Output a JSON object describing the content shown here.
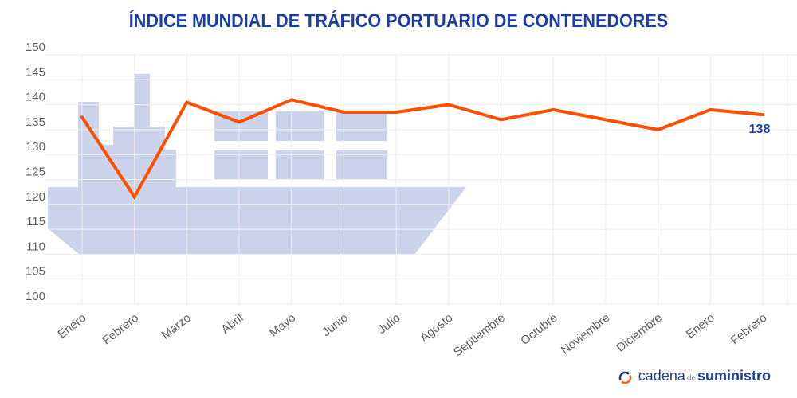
{
  "title": "ÍNDICE MUNDIAL DE TRÁFICO PORTUARIO DE CONTENEDORES",
  "chart_data": {
    "type": "line",
    "title": "ÍNDICE MUNDIAL DE TRÁFICO PORTUARIO DE CONTENEDORES",
    "categories": [
      "Enero",
      "Febrero",
      "Marzo",
      "Abril",
      "Mayo",
      "Junio",
      "Julio",
      "Agosto",
      "Septiembre",
      "Octubre",
      "Noviembre",
      "Diciembre",
      "Enero",
      "Febrero"
    ],
    "values": [
      137.5,
      121.5,
      140.5,
      136.5,
      141,
      138.5,
      138.5,
      140,
      137,
      139,
      137,
      135,
      139,
      138
    ],
    "end_label": "138",
    "yticks": [
      150,
      145,
      140,
      135,
      130,
      125,
      120,
      115,
      110,
      105,
      100
    ],
    "ylim": [
      100,
      150
    ],
    "xlabel": "",
    "ylabel": "",
    "grid": true,
    "legend": "none",
    "watermark": "container-ship-silhouette"
  },
  "colors": {
    "line": "#fc4f00",
    "title_text": "#1b3da6",
    "end_label_text": "#1b3da6",
    "axis_text": "#5f5f5f",
    "gridline": "#ededed",
    "watermark": "#ccd4eb",
    "logo_navy": "#24397b",
    "logo_orange": "#f26522",
    "logo_text_blue": "#1e4199"
  },
  "footer": {
    "brand_word1": "cadena",
    "brand_word2": "de",
    "brand_word3": "suministro"
  }
}
